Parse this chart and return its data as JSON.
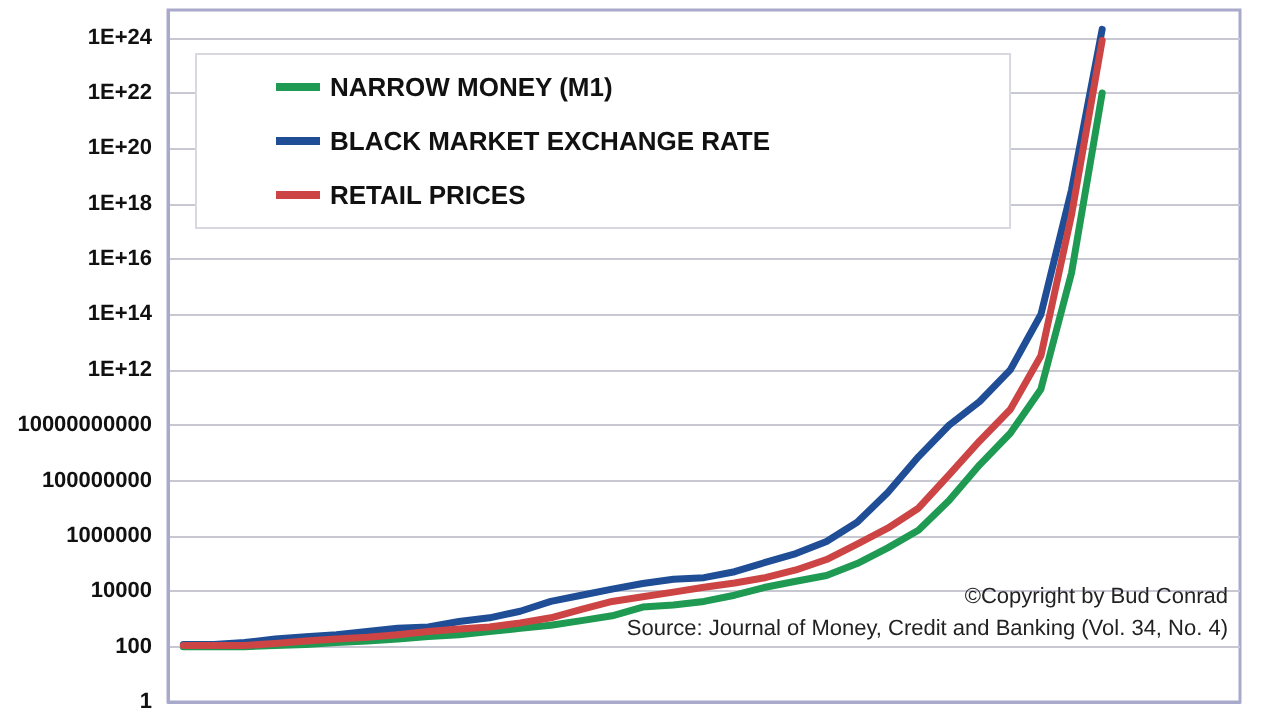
{
  "chart_data": {
    "type": "line",
    "categories": [
      null,
      null,
      null,
      null,
      null,
      null,
      null,
      null,
      null,
      null,
      null,
      null,
      null,
      null,
      null,
      null,
      null,
      null,
      null,
      null,
      null,
      null,
      null,
      null,
      null,
      null,
      null,
      null,
      null,
      null,
      null,
      null,
      null,
      null,
      null
    ],
    "series": [
      {
        "name": "NARROW MONEY (M1)",
        "color": "#1e9a52",
        "values": [
          100.0,
          100.0,
          100.0,
          110.0,
          120.0,
          140.0,
          160.0,
          190.0,
          230.0,
          270.0,
          350.0,
          460.0,
          590.0,
          870.0,
          1300.0,
          2700.0,
          3200.0,
          4300.0,
          7200.0,
          14000.0,
          23000.0,
          37000.0,
          100000.0,
          370000.0,
          1600000.0,
          19000000.0,
          370000000.0,
          5100000000.0,
          200000000000.0,
          3200000000000000.0,
          1e+22,
          null,
          null,
          null,
          null
        ]
      },
      {
        "name": "BLACK MARKET EXCHANGE RATE",
        "color": "#1f4e96",
        "values": [
          120.0,
          120.0,
          140.0,
          190.0,
          230.0,
          270.0,
          350.0,
          460.0,
          510.0,
          810.0,
          1100.0,
          1900.0,
          4300.0,
          7200.0,
          12000.0,
          19000.0,
          27000.0,
          31000.0,
          51000.0,
          110000.0,
          230000.0,
          630000.0,
          3100000.0,
          37000000.0,
          720000000.0,
          10000000000.0,
          72000000000.0,
          1000000000000.0,
          100000000000000.0,
          3.2e+18,
          2e+24,
          null,
          null,
          null,
          null
        ]
      },
      {
        "name": "RETAIL PRICES",
        "color": "#cc4444",
        "values": [
          110.0,
          110.0,
          110.0,
          130.0,
          160.0,
          190.0,
          220.0,
          270.0,
          350.0,
          430.0,
          510.0,
          720.0,
          1100.0,
          2200.0,
          4300.0,
          6300.0,
          9300.0,
          14000.0,
          20000.0,
          31000.0,
          59000.0,
          140000.0,
          510000.0,
          1900000.0,
          10000000.0,
          160000000.0,
          2700000000.0,
          37000000000.0,
          3200000000000.0,
          4e+17,
          7.9e+23,
          null,
          null,
          null,
          null
        ]
      }
    ],
    "log": "y",
    "ylim": [
      1,
      1e+25
    ],
    "yticks": [
      1,
      100,
      10000,
      1000000,
      100000000,
      10000000000,
      {
        "value": 1000000000000.0,
        "label": "1E+12"
      },
      {
        "value": 100000000000000.0,
        "label": "1E+14"
      },
      {
        "value": 1e+16,
        "label": "1E+16"
      },
      {
        "value": 1e+18,
        "label": "1E+18"
      },
      {
        "value": 1e+20,
        "label": "1E+20"
      },
      {
        "value": 1e+22,
        "label": "1E+22"
      },
      {
        "value": 1e+24,
        "label": "1E+24"
      }
    ],
    "grid": "y",
    "legend": "top left",
    "marker": "none",
    "line_style": "solid",
    "annotations": [
      "©Copyright by Bud Conrad",
      "Source: Journal of Money, Credit and Banking (Vol. 34, No. 4)"
    ]
  }
}
